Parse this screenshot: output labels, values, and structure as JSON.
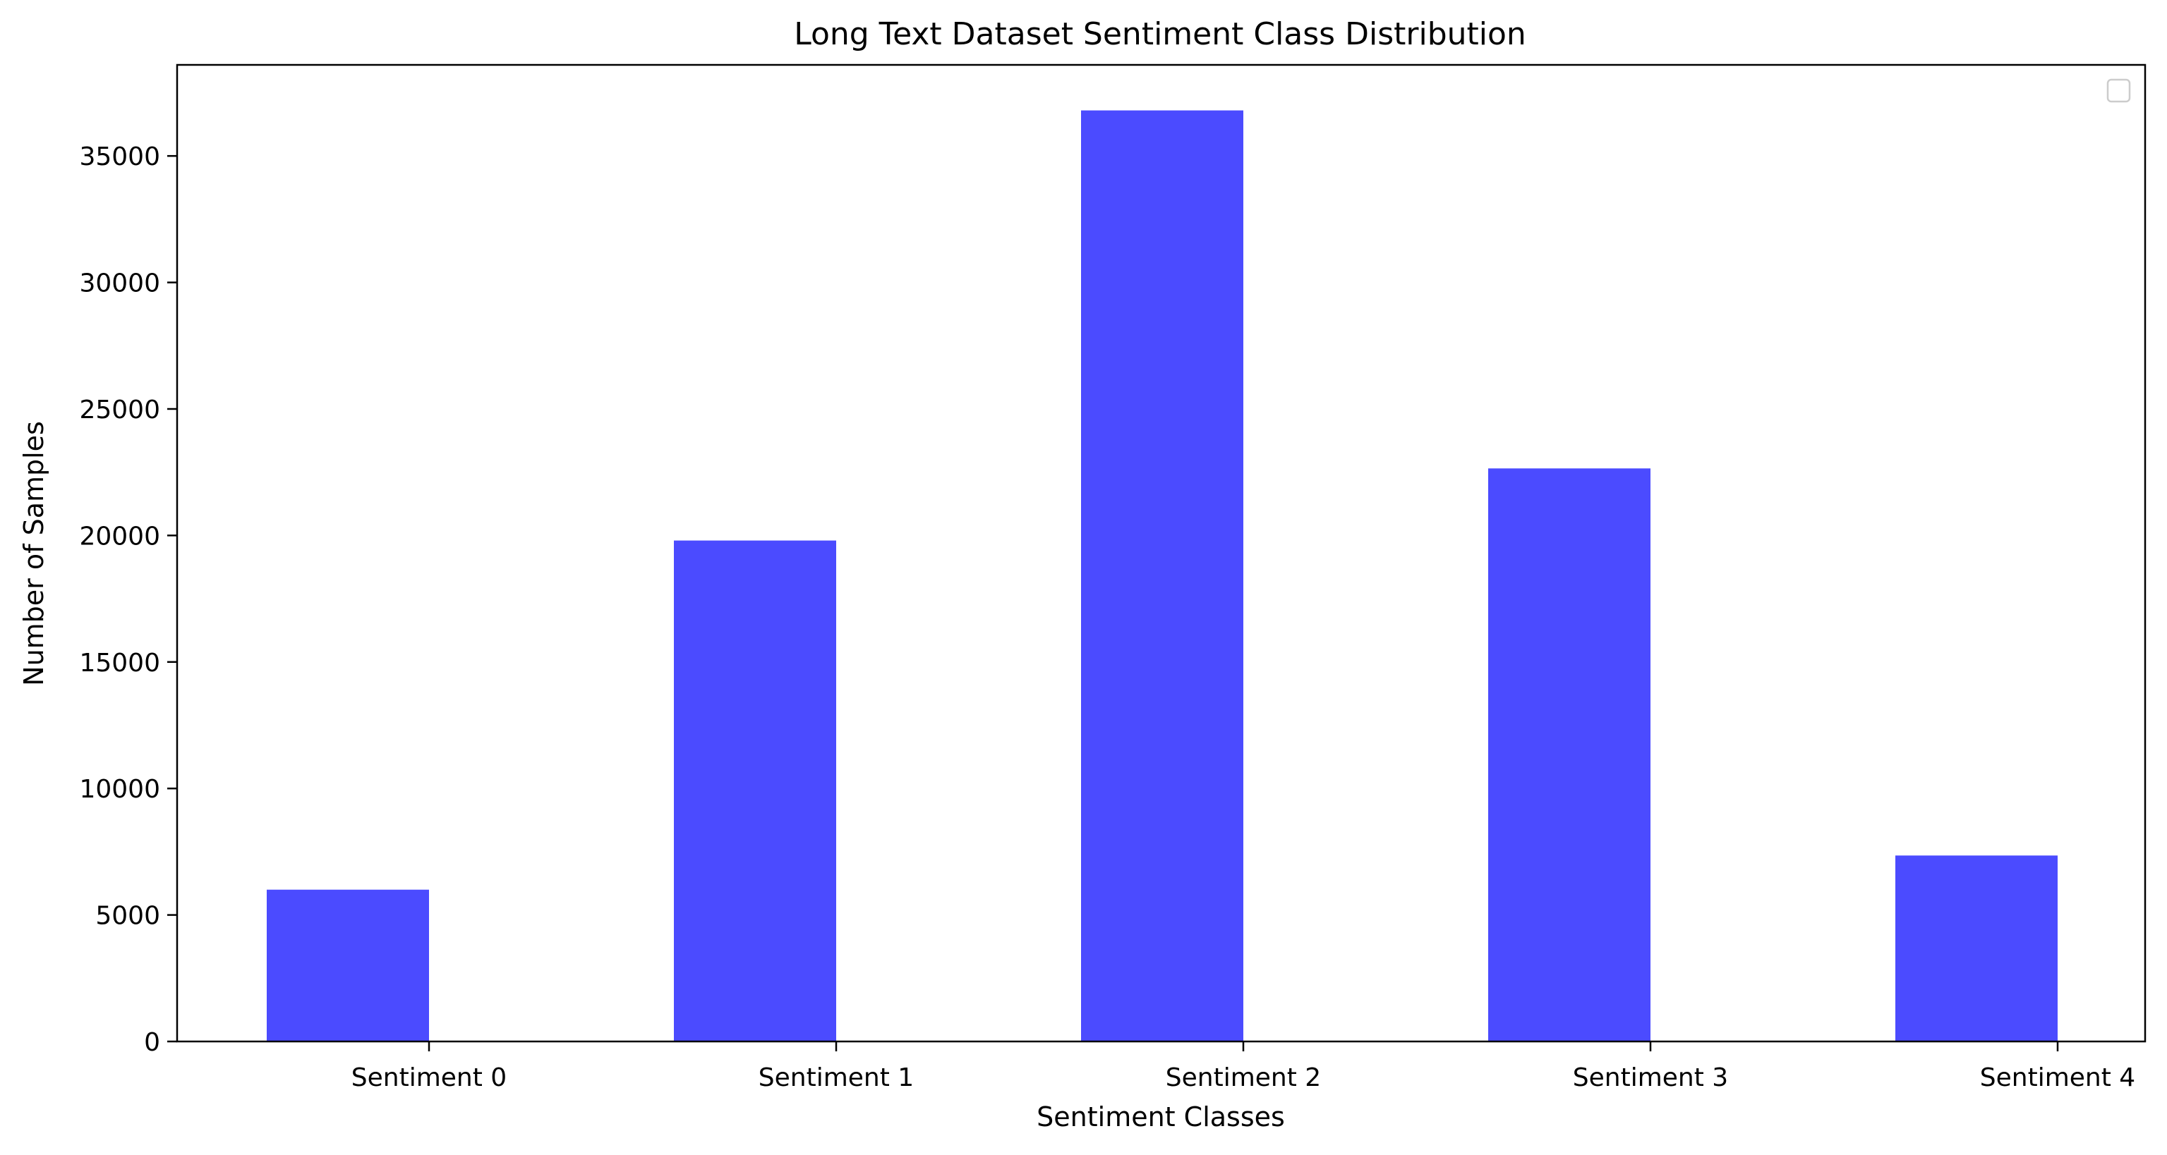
{
  "chart_data": {
    "type": "bar",
    "title": "Long Text Dataset Sentiment Class Distribution",
    "xlabel": "Sentiment Classes",
    "ylabel": "Number of Samples",
    "categories": [
      "Sentiment 0",
      "Sentiment 1",
      "Sentiment 2",
      "Sentiment 3",
      "Sentiment 4"
    ],
    "values": [
      6000,
      19800,
      36800,
      22650,
      7350
    ],
    "ylim": [
      0,
      38600
    ],
    "yticks": [
      0,
      5000,
      10000,
      15000,
      20000,
      25000,
      30000,
      35000
    ],
    "ytick_labels": [
      "0",
      "5000",
      "10000",
      "15000",
      "20000",
      "25000",
      "30000",
      "35000"
    ],
    "bar_color": "#4b4bff",
    "grid": false,
    "legend": {
      "placement": "upper right",
      "entries": []
    }
  }
}
